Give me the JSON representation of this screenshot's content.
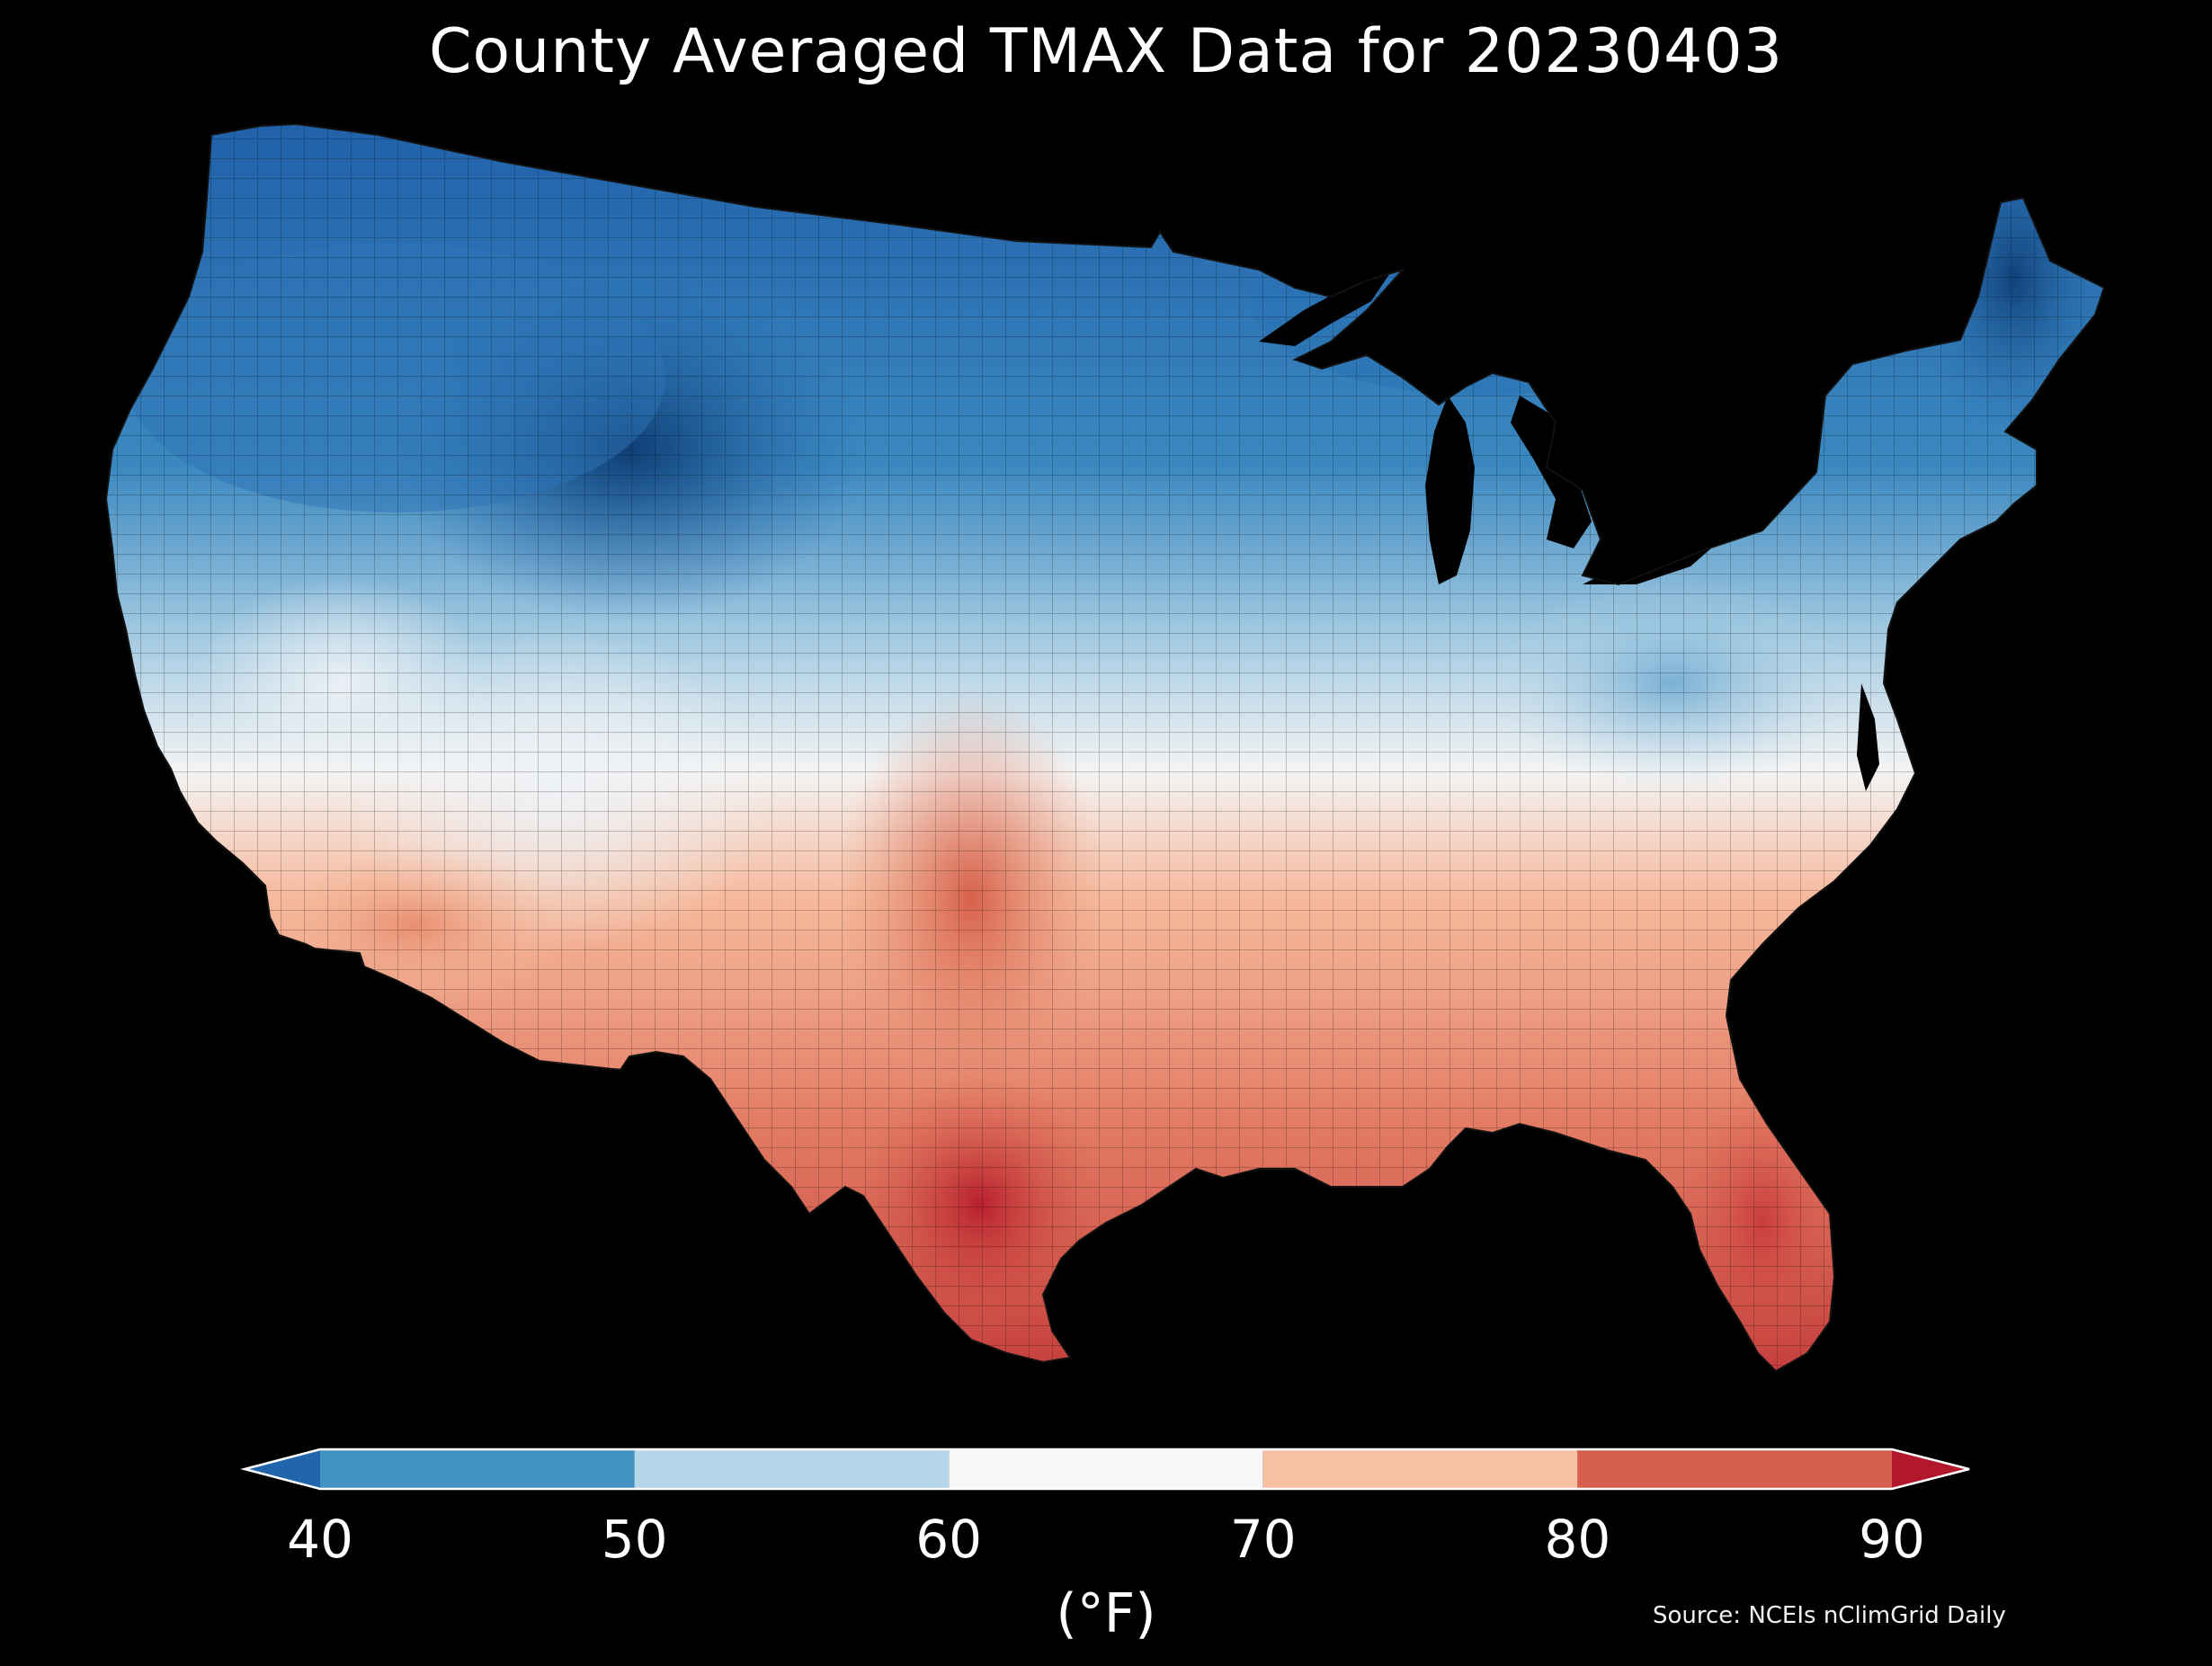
{
  "title": "County Averaged TMAX Data for 20230403",
  "source": "Source: NCEIs nClimGrid Daily",
  "colorbar": {
    "units": "(°F)",
    "ticks": [
      "40",
      "50",
      "60",
      "70",
      "80",
      "90"
    ],
    "under_color": "#2166ac",
    "over_color": "#b2182b",
    "bins": [
      {
        "from": 40,
        "to": 50,
        "color": "#4393c3"
      },
      {
        "from": 50,
        "to": 60,
        "color": "#b4d6e8"
      },
      {
        "from": 60,
        "to": 70,
        "color": "#f7f7f7"
      },
      {
        "from": 70,
        "to": 80,
        "color": "#f8c0a3"
      },
      {
        "from": 80,
        "to": 90,
        "color": "#d6604d"
      }
    ]
  },
  "map": {
    "region": "Contiguous United States",
    "variable": "TMAX",
    "date": "20230403",
    "background": "#000000"
  }
}
